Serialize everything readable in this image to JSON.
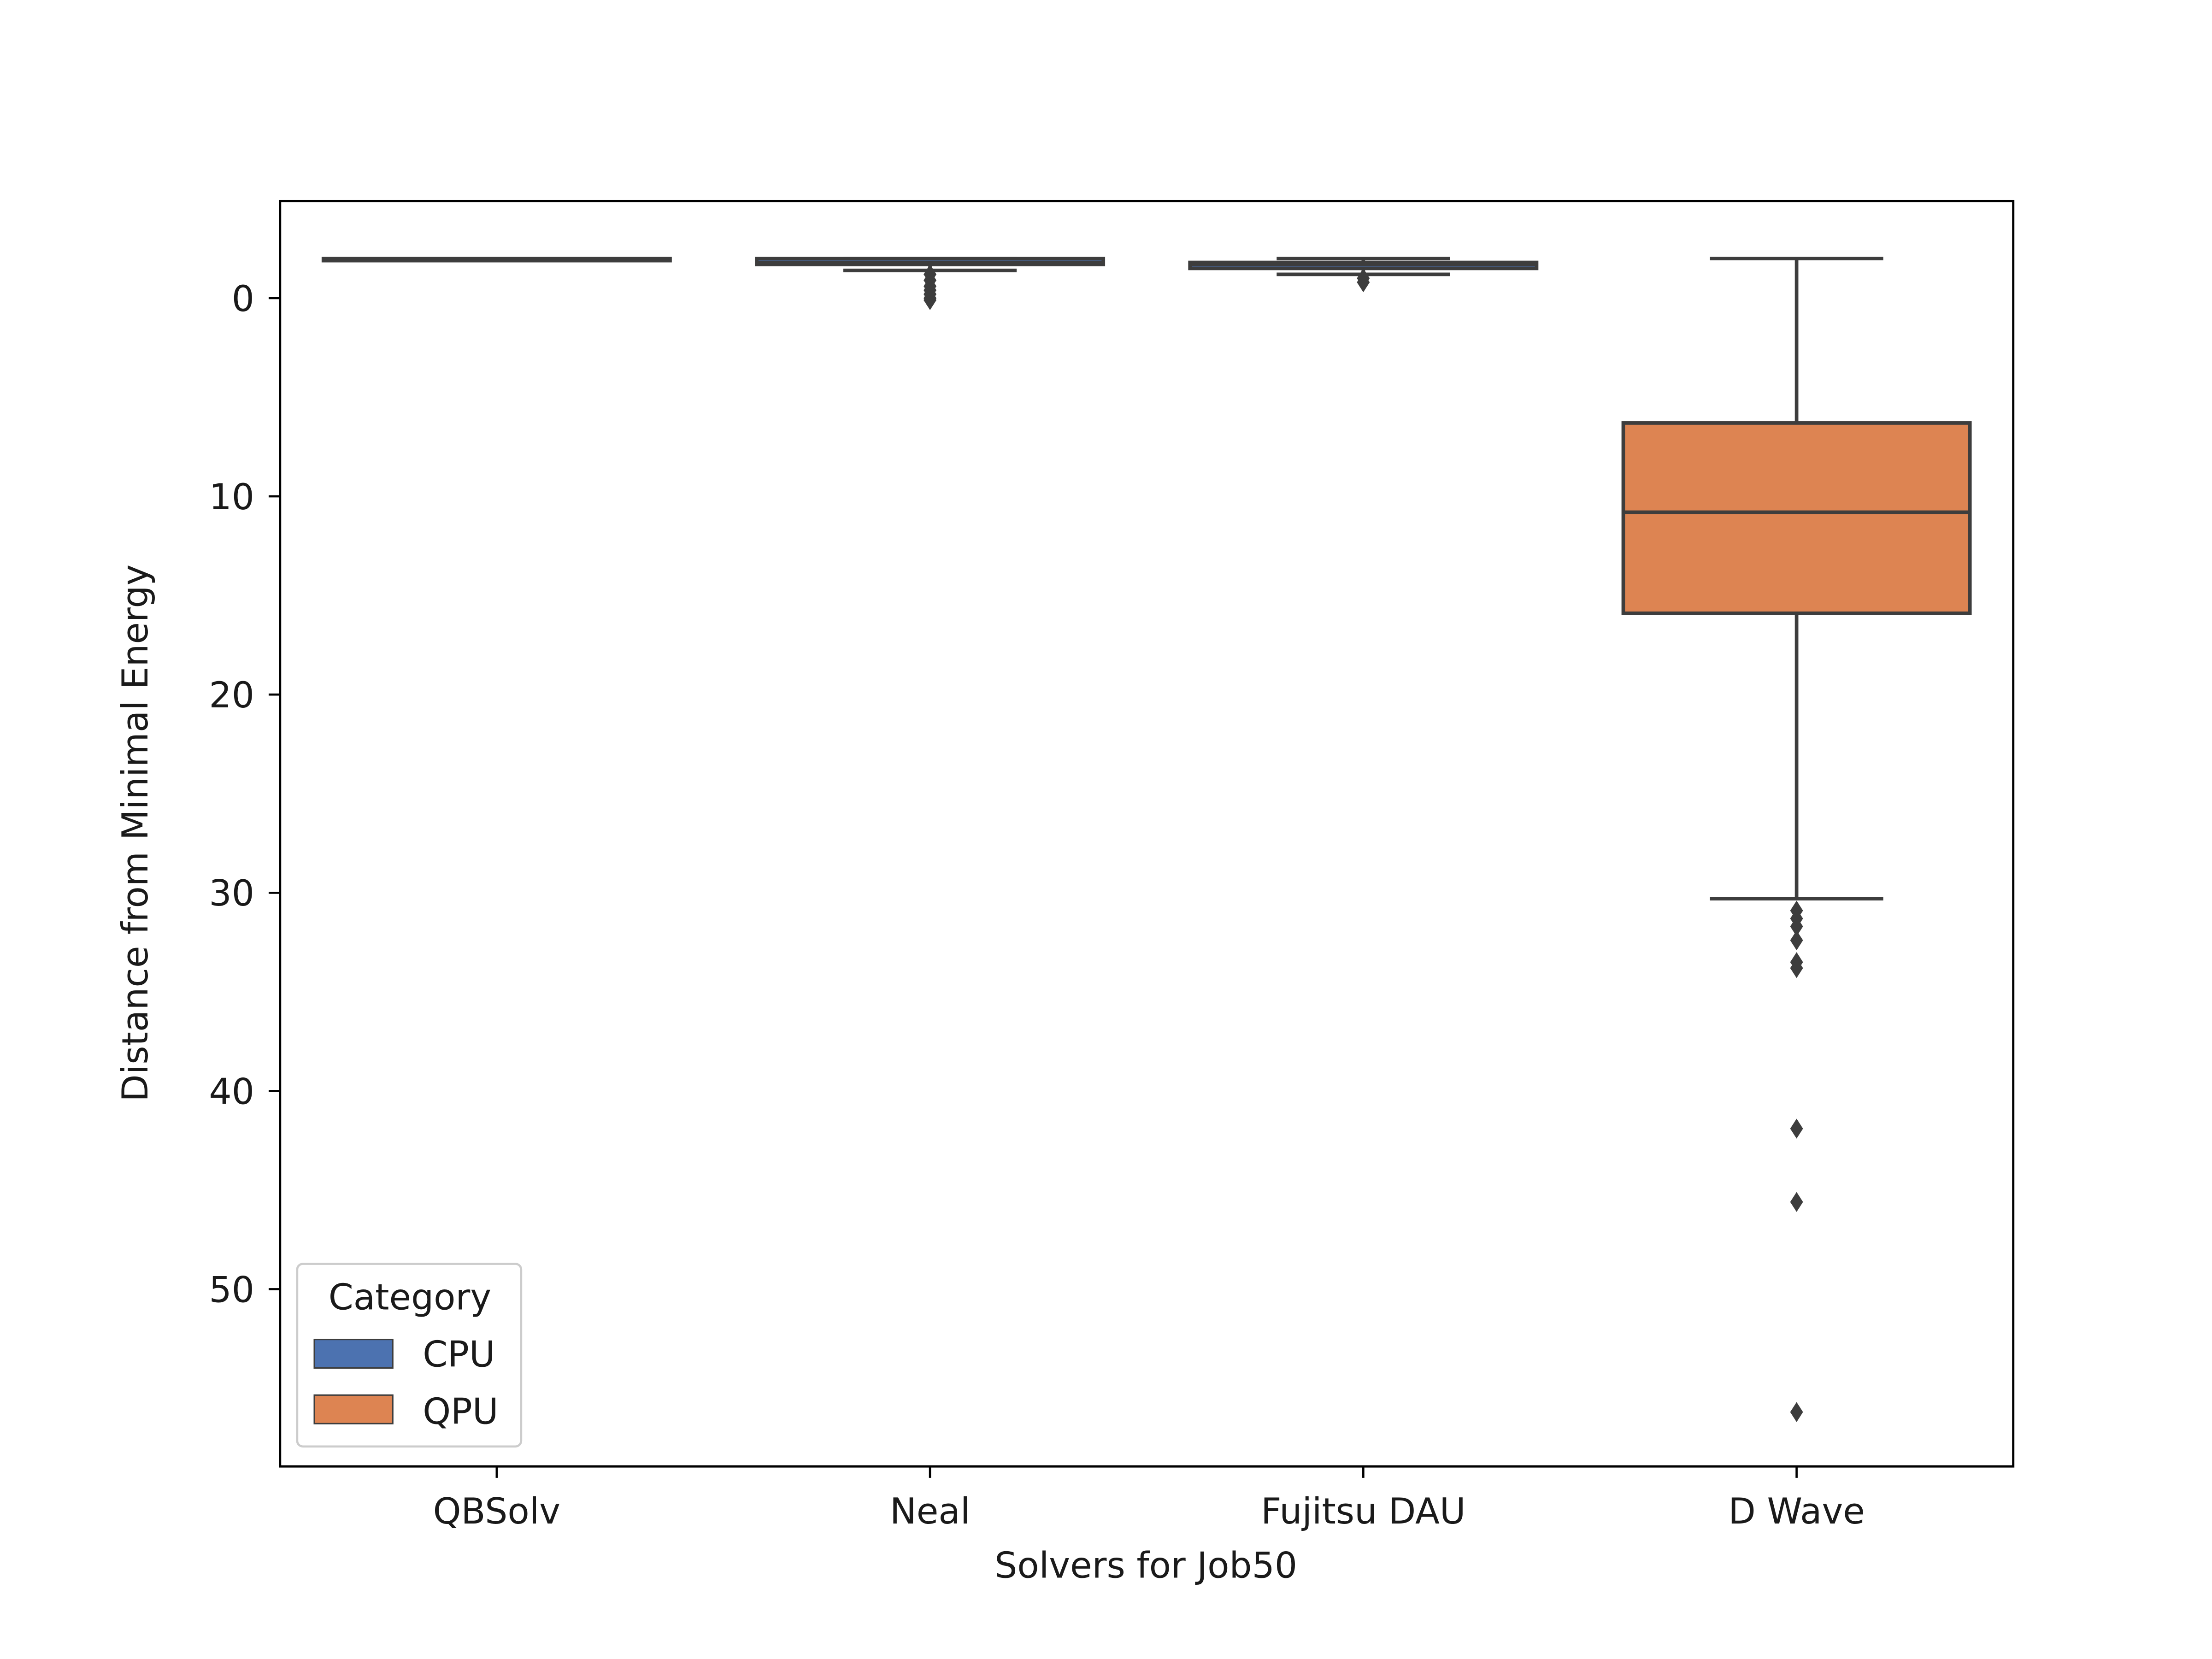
{
  "chart_data": {
    "type": "box",
    "xlabel": "Solvers for Job50",
    "ylabel": "Distance from Minimal Energy",
    "ylim": [
      59,
      -5
    ],
    "y_inverted": true,
    "y_ticks": [
      0,
      10,
      20,
      30,
      40,
      50
    ],
    "grid": false,
    "legend": {
      "title": "Category",
      "placement": "lower-left",
      "entries": [
        {
          "label": "CPU",
          "color": "#4c72b0"
        },
        {
          "label": "QPU",
          "color": "#dd8452"
        }
      ]
    },
    "categories": [
      "QBSolv",
      "Neal",
      "Fujitsu DAU",
      "D Wave"
    ],
    "series": [
      {
        "category": "QBSolv",
        "group": "CPU",
        "color": "#4c72b0",
        "whisker_low": -2,
        "q1": -2,
        "median": -2,
        "q3": -2,
        "whisker_high": -2,
        "outliers": []
      },
      {
        "category": "Neal",
        "group": "CPU",
        "color": "#4c72b0",
        "whisker_low": -2,
        "q1": -2,
        "median": -1.8,
        "q3": -1.7,
        "whisker_high": -1.4,
        "outliers": [
          -1.2,
          -0.9,
          -0.6,
          -0.4,
          -0.2,
          0.0,
          0.1
        ]
      },
      {
        "category": "Fujitsu DAU",
        "group": "CPU",
        "color": "#4c72b0",
        "whisker_low": -2,
        "q1": -1.8,
        "median": -1.7,
        "q3": -1.5,
        "whisker_high": -1.2,
        "outliers": [
          -1.0,
          -0.8
        ]
      },
      {
        "category": "D Wave",
        "group": "QPU",
        "color": "#dd8452",
        "whisker_low": -2,
        "q1": 6.3,
        "median": 10.8,
        "q3": 15.9,
        "whisker_high": 30.3,
        "outliers": [
          30.9,
          31.3,
          31.7,
          32.4,
          33.5,
          33.8,
          41.9,
          45.6,
          56.2
        ]
      }
    ]
  },
  "style": {
    "cpu_color": "#4c72b0",
    "qpu_color": "#dd8452",
    "line_color": "#3d3d3d"
  }
}
